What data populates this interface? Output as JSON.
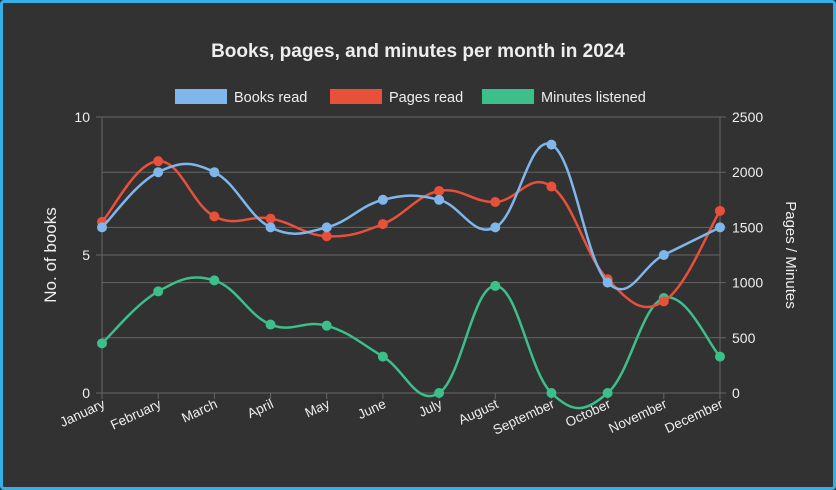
{
  "chart_data": {
    "type": "line",
    "title": "Books, pages, and minutes per month in 2024",
    "categories": [
      "January",
      "February",
      "March",
      "April",
      "May",
      "June",
      "July",
      "August",
      "September",
      "October",
      "November",
      "December"
    ],
    "series": [
      {
        "name": "Books read",
        "axis": "left",
        "color": "#7fb6ec",
        "values": [
          6,
          8,
          8,
          6,
          6,
          7,
          7,
          6,
          9,
          4,
          5,
          6
        ]
      },
      {
        "name": "Pages read",
        "axis": "right",
        "color": "#e8503a",
        "values": [
          1550,
          2100,
          1600,
          1580,
          1420,
          1530,
          1830,
          1730,
          1870,
          1030,
          830,
          1650
        ]
      },
      {
        "name": "Minutes listened",
        "axis": "right",
        "color": "#3dbf8c",
        "values": [
          450,
          920,
          1020,
          620,
          610,
          330,
          0,
          970,
          0,
          0,
          860,
          330
        ]
      }
    ],
    "ylabel": "No. of books",
    "y2label": "Pages / Minutes",
    "ylim": [
      0,
      10
    ],
    "y2lim": [
      0,
      2500
    ],
    "yticks": [
      "0",
      "5",
      "10"
    ],
    "y2ticks": [
      "0",
      "500",
      "1000",
      "1500",
      "2000",
      "2500"
    ],
    "grid": true,
    "legend": "top"
  }
}
